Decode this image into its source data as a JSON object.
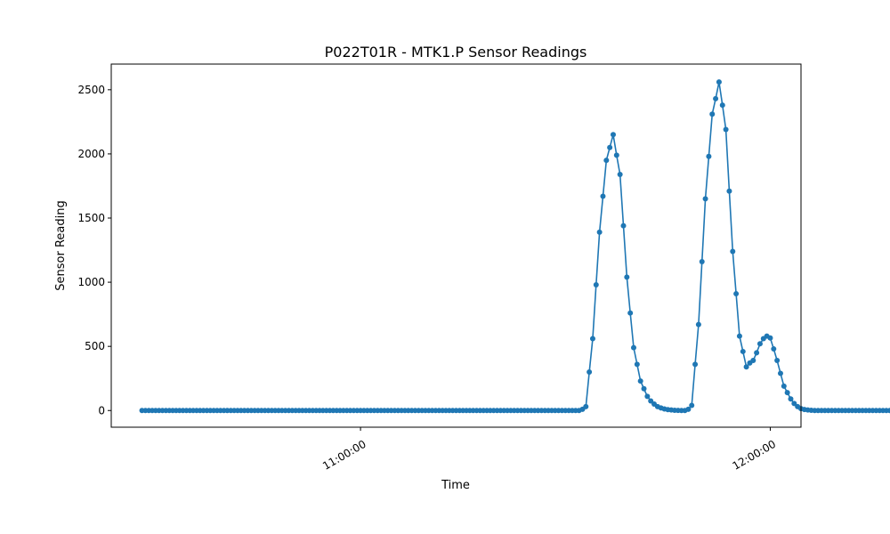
{
  "chart_data": {
    "type": "line",
    "title": "P022T01R - MTK1.P Sensor Readings",
    "xlabel": "Time",
    "ylabel": "Sensor Reading",
    "x_tick_labels": [
      "11:00:00",
      "12:00:00"
    ],
    "x_tick_values": [
      "11:00:00",
      "12:00:00"
    ],
    "xlim": [
      "10:23:30",
      "12:04:30"
    ],
    "y_tick_labels": [
      "0",
      "500",
      "1000",
      "1500",
      "2000",
      "2500"
    ],
    "y_tick_values": [
      0,
      500,
      1000,
      1500,
      2000,
      2500
    ],
    "ylim": [
      -130,
      2700
    ],
    "grid": false,
    "legend": "none",
    "series": [
      {
        "marker": "circle",
        "color": "#1f77b4",
        "points": [
          [
            "10:28:00",
            0
          ],
          [
            "11:32:00",
            0
          ],
          [
            "11:32:30",
            10
          ],
          [
            "11:33:00",
            30
          ],
          [
            "11:33:30",
            300
          ],
          [
            "11:34:00",
            560
          ],
          [
            "11:34:30",
            980
          ],
          [
            "11:35:00",
            1390
          ],
          [
            "11:35:30",
            1670
          ],
          [
            "11:36:00",
            1950
          ],
          [
            "11:36:30",
            2050
          ],
          [
            "11:37:00",
            2150
          ],
          [
            "11:37:30",
            1990
          ],
          [
            "11:38:00",
            1840
          ],
          [
            "11:38:30",
            1440
          ],
          [
            "11:39:00",
            1040
          ],
          [
            "11:39:30",
            760
          ],
          [
            "11:40:00",
            490
          ],
          [
            "11:40:30",
            360
          ],
          [
            "11:41:00",
            230
          ],
          [
            "11:41:30",
            170
          ],
          [
            "11:42:00",
            110
          ],
          [
            "11:42:30",
            75
          ],
          [
            "11:43:00",
            50
          ],
          [
            "11:43:30",
            30
          ],
          [
            "11:44:00",
            20
          ],
          [
            "11:44:30",
            12
          ],
          [
            "11:45:00",
            7
          ],
          [
            "11:45:30",
            4
          ],
          [
            "11:46:00",
            2
          ],
          [
            "11:47:00",
            0
          ],
          [
            "11:47:30",
            0
          ],
          [
            "11:48:00",
            10
          ],
          [
            "11:48:30",
            40
          ],
          [
            "11:49:00",
            360
          ],
          [
            "11:49:30",
            670
          ],
          [
            "11:50:00",
            1160
          ],
          [
            "11:50:30",
            1650
          ],
          [
            "11:51:00",
            1980
          ],
          [
            "11:51:30",
            2310
          ],
          [
            "11:52:00",
            2430
          ],
          [
            "11:52:30",
            2560
          ],
          [
            "11:53:00",
            2380
          ],
          [
            "11:53:30",
            2190
          ],
          [
            "11:54:00",
            1710
          ],
          [
            "11:54:30",
            1240
          ],
          [
            "11:55:00",
            910
          ],
          [
            "11:55:30",
            580
          ],
          [
            "11:56:00",
            460
          ],
          [
            "11:56:30",
            340
          ],
          [
            "11:57:00",
            370
          ],
          [
            "11:57:30",
            390
          ],
          [
            "11:58:00",
            450
          ],
          [
            "11:58:30",
            520
          ],
          [
            "11:59:00",
            560
          ],
          [
            "11:59:30",
            580
          ],
          [
            "12:00:00",
            565
          ],
          [
            "12:00:30",
            480
          ],
          [
            "12:01:00",
            390
          ],
          [
            "12:01:30",
            290
          ],
          [
            "12:02:00",
            190
          ],
          [
            "12:02:30",
            140
          ],
          [
            "12:03:00",
            90
          ],
          [
            "12:03:30",
            55
          ],
          [
            "12:04:00",
            30
          ],
          [
            "12:04:30",
            15
          ],
          [
            "12:05:00",
            8
          ],
          [
            "12:05:30",
            4
          ],
          [
            "12:06:00",
            2
          ],
          [
            "12:06:30",
            0
          ],
          [
            "12:23:00",
            0
          ]
        ]
      }
    ]
  }
}
